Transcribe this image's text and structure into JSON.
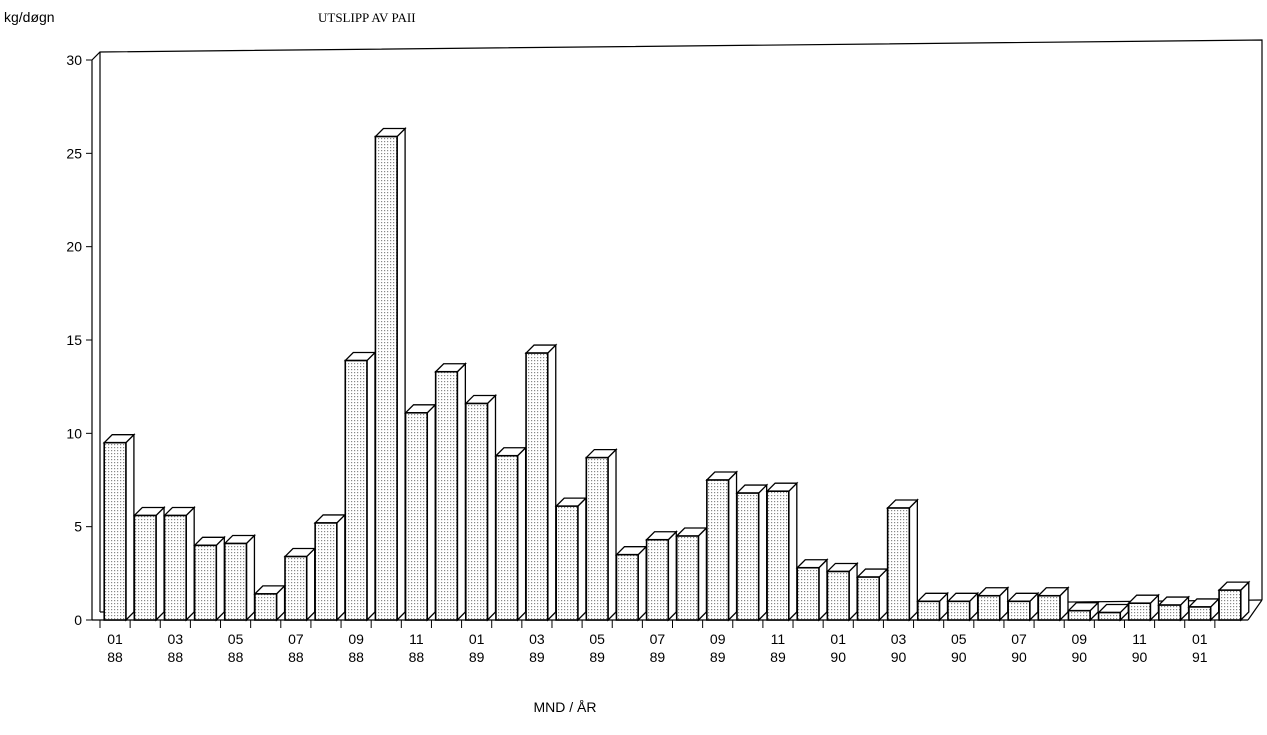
{
  "chart_data": {
    "type": "bar3d",
    "title": "UTSLIPP AV PAII",
    "y_label": "kg/døgn",
    "x_label": "MND / ÅR",
    "categories": [
      "01\n88",
      null,
      "03\n88",
      null,
      "05\n88",
      null,
      "07\n88",
      null,
      "09\n88",
      null,
      "11\n88",
      null,
      "01\n89",
      null,
      "03\n89",
      null,
      "05\n89",
      null,
      "07\n89",
      null,
      "09\n89",
      null,
      "11\n89",
      null,
      "01\n90",
      null,
      "03\n90",
      null,
      "05\n90",
      null,
      "07\n90",
      null,
      "09\n90",
      null,
      "11\n90",
      null,
      "01\n91",
      null
    ],
    "values": [
      9.5,
      5.6,
      5.6,
      4.0,
      4.1,
      1.4,
      3.4,
      5.2,
      13.9,
      25.9,
      11.1,
      13.3,
      11.6,
      8.8,
      14.3,
      6.1,
      8.7,
      3.5,
      4.3,
      4.5,
      7.5,
      6.8,
      6.9,
      2.8,
      2.6,
      2.3,
      6.0,
      1.0,
      1.0,
      1.3,
      1.0,
      1.3,
      0.5,
      0.4,
      0.9,
      0.8,
      0.7,
      1.6
    ],
    "color": "#d4d4d4",
    "ylim": [
      0,
      30
    ],
    "yticks": [
      0,
      5,
      10,
      15,
      20,
      25,
      30
    ],
    "grid": false
  }
}
